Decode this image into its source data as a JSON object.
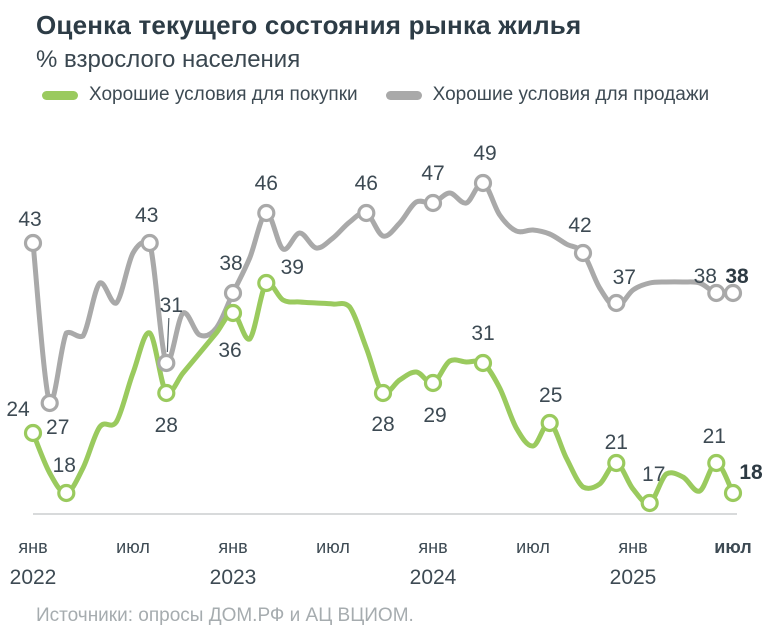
{
  "header": {
    "title": "Оценка текущего состояния рынка жилья",
    "subtitle": "% взрослого населения"
  },
  "legend": [
    {
      "label": "Хорошие условия для покупки",
      "color": "#9aca5e"
    },
    {
      "label": "Хорошие условия для продажи",
      "color": "#a9a9a9"
    }
  ],
  "source": "Источники: опросы ДОМ.РФ и АЦ ВЦИОМ.",
  "chart_data": {
    "type": "line",
    "title": "Оценка текущего состояния рынка жилья",
    "subtitle": "% взрослого населения",
    "x_unit": "months since Jan 2022",
    "x_range": [
      "янв 2022",
      "июл 2025"
    ],
    "ylim": [
      16,
      52
    ],
    "grid": false,
    "legend_position": "top",
    "axis_color": "#d8dadb",
    "label_color": "#3d4a53",
    "x_axis": {
      "ticks": [
        {
          "m": 0,
          "month": "янв",
          "year": "2022"
        },
        {
          "m": 6,
          "month": "июл"
        },
        {
          "m": 12,
          "month": "янв",
          "year": "2023"
        },
        {
          "m": 18,
          "month": "июл"
        },
        {
          "m": 24,
          "month": "янв",
          "year": "2024"
        },
        {
          "m": 30,
          "month": "июл"
        },
        {
          "m": 36,
          "month": "янв",
          "year": "2025"
        },
        {
          "m": 42,
          "month": "июл",
          "bold": true
        }
      ]
    },
    "series": [
      {
        "name": "Хорошие условия для продажи",
        "color": "#a9a9a9",
        "points": [
          [
            0,
            43
          ],
          [
            1,
            27
          ],
          [
            2,
            34
          ],
          [
            3,
            33.7
          ],
          [
            4,
            39
          ],
          [
            5,
            37
          ],
          [
            6,
            42
          ],
          [
            7,
            43
          ],
          [
            8,
            31
          ],
          [
            9,
            36
          ],
          [
            10,
            33.8
          ],
          [
            11,
            34.5
          ],
          [
            12,
            38
          ],
          [
            13,
            41.5
          ],
          [
            14,
            46
          ],
          [
            15,
            42.4
          ],
          [
            16,
            44
          ],
          [
            17,
            42.5
          ],
          [
            18,
            43.5
          ],
          [
            19,
            45.1
          ],
          [
            20,
            46
          ],
          [
            21,
            43.7
          ],
          [
            22,
            45
          ],
          [
            23,
            47.1
          ],
          [
            24,
            47
          ],
          [
            25,
            48
          ],
          [
            26,
            47
          ],
          [
            27,
            49
          ],
          [
            28,
            45.8
          ],
          [
            29,
            44.2
          ],
          [
            30,
            44.3
          ],
          [
            31,
            43.9
          ],
          [
            32,
            42.9
          ],
          [
            33,
            42
          ],
          [
            34,
            38.5
          ],
          [
            35,
            36.6
          ],
          [
            36,
            38.3
          ],
          [
            37,
            39
          ],
          [
            38,
            39.1
          ],
          [
            39,
            39.1
          ],
          [
            40,
            39
          ],
          [
            41,
            38
          ],
          [
            42,
            38
          ]
        ],
        "labels": [
          {
            "m": 0,
            "v": 43,
            "text": "43",
            "dx": -3,
            "dy": -24
          },
          {
            "m": 1,
            "v": 27,
            "text": "27",
            "dx": 8,
            "dy": 24
          },
          {
            "m": 7,
            "v": 43,
            "text": "43",
            "dx": -3,
            "dy": -28
          },
          {
            "m": 8,
            "v": 31,
            "text": "31",
            "dx": 5,
            "dy": -58,
            "leader": true
          },
          {
            "m": 12,
            "v": 38,
            "text": "38",
            "dx": -2,
            "dy": -30
          },
          {
            "m": 14,
            "v": 46,
            "text": "46",
            "dx": 0,
            "dy": -30
          },
          {
            "m": 20,
            "v": 46,
            "text": "46",
            "dx": 0,
            "dy": -30
          },
          {
            "m": 24,
            "v": 47,
            "text": "47",
            "dx": 0,
            "dy": -30
          },
          {
            "m": 27,
            "v": 49,
            "text": "49",
            "dx": 2,
            "dy": -30
          },
          {
            "m": 33,
            "v": 42,
            "text": "42",
            "dx": -3,
            "dy": -28
          },
          {
            "m": 35,
            "v": 37,
            "text": "37",
            "dx": 8,
            "dy": -26
          },
          {
            "m": 41,
            "v": 38,
            "text": "38",
            "dx": -11,
            "dy": -17
          },
          {
            "m": 42,
            "v": 38,
            "text": "38",
            "dx": 4,
            "dy": -17,
            "bold": true
          }
        ]
      },
      {
        "name": "Хорошие условия для покупки",
        "color": "#9aca5e",
        "points": [
          [
            0,
            24
          ],
          [
            1,
            20
          ],
          [
            2,
            18
          ],
          [
            3,
            20.5
          ],
          [
            4,
            24.6
          ],
          [
            5,
            25.1
          ],
          [
            6,
            30
          ],
          [
            7,
            34
          ],
          [
            8,
            28
          ],
          [
            9,
            30
          ],
          [
            10,
            32
          ],
          [
            11,
            34
          ],
          [
            12,
            36
          ],
          [
            13,
            33.4
          ],
          [
            14,
            39
          ],
          [
            15,
            37.3
          ],
          [
            16,
            37.1
          ],
          [
            17,
            37
          ],
          [
            18,
            36.9
          ],
          [
            19,
            36.6
          ],
          [
            20,
            32.5
          ],
          [
            21,
            28
          ],
          [
            22,
            29.3
          ],
          [
            23,
            30.1
          ],
          [
            24,
            29
          ],
          [
            25,
            31.2
          ],
          [
            26,
            31.1
          ],
          [
            27,
            31
          ],
          [
            28,
            28.5
          ],
          [
            29,
            24.5
          ],
          [
            30,
            22.7
          ],
          [
            31,
            25
          ],
          [
            32,
            21.5
          ],
          [
            33,
            18.6
          ],
          [
            34,
            18.9
          ],
          [
            35,
            21
          ],
          [
            36,
            18.4
          ],
          [
            37,
            17
          ],
          [
            38,
            19.9
          ],
          [
            39,
            19.6
          ],
          [
            40,
            18.2
          ],
          [
            41,
            21
          ],
          [
            42,
            18
          ]
        ],
        "labels": [
          {
            "m": 0,
            "v": 24,
            "text": "24",
            "dx": -15,
            "dy": -24
          },
          {
            "m": 2,
            "v": 18,
            "text": "18",
            "dx": -2,
            "dy": -28
          },
          {
            "m": 8,
            "v": 28,
            "text": "28",
            "dx": 0,
            "dy": 32
          },
          {
            "m": 12,
            "v": 36,
            "text": "36",
            "dx": -3,
            "dy": 37
          },
          {
            "m": 14,
            "v": 39,
            "text": "39",
            "dx": 26,
            "dy": -16
          },
          {
            "m": 21,
            "v": 28,
            "text": "28",
            "dx": 0,
            "dy": 31
          },
          {
            "m": 24,
            "v": 29,
            "text": "29",
            "dx": 2,
            "dy": 32
          },
          {
            "m": 27,
            "v": 31,
            "text": "31",
            "dx": 0,
            "dy": -30
          },
          {
            "m": 31,
            "v": 25,
            "text": "25",
            "dx": 1,
            "dy": -28
          },
          {
            "m": 35,
            "v": 21,
            "text": "21",
            "dx": 0,
            "dy": -21
          },
          {
            "m": 37,
            "v": 17,
            "text": "17",
            "dx": 4,
            "dy": -29
          },
          {
            "m": 41,
            "v": 21,
            "text": "21",
            "dx": -2,
            "dy": -27
          },
          {
            "m": 42,
            "v": 18,
            "text": "18",
            "dx": 18,
            "dy": -21,
            "bold": true
          }
        ]
      }
    ]
  }
}
